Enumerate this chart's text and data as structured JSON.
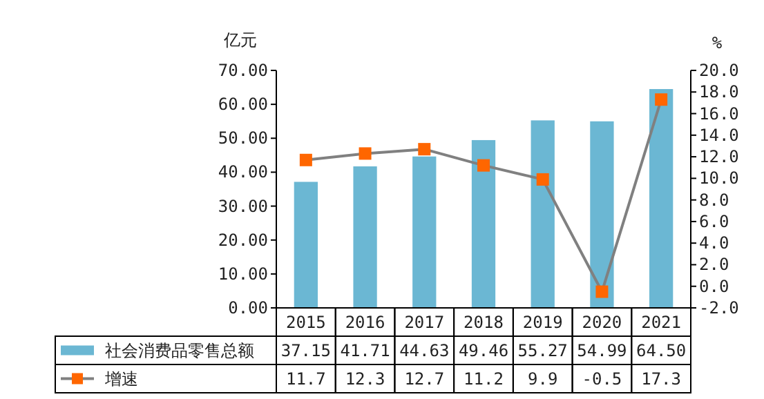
{
  "chart_data": {
    "type": "bar",
    "categories": [
      "2015",
      "2016",
      "2017",
      "2018",
      "2019",
      "2020",
      "2021"
    ],
    "ylabel": "亿元",
    "y2label": "%",
    "ylim": [
      0,
      70
    ],
    "yticks": [
      {
        "value": 0,
        "label": "0.00"
      },
      {
        "value": 10,
        "label": "10.00"
      },
      {
        "value": 20,
        "label": "20.00"
      },
      {
        "value": 30,
        "label": "30.00"
      },
      {
        "value": 40,
        "label": "40.00"
      },
      {
        "value": 50,
        "label": "50.00"
      },
      {
        "value": 60,
        "label": "60.00"
      },
      {
        "value": 70,
        "label": "70.00"
      }
    ],
    "y2lim": [
      -2,
      20
    ],
    "y2ticks": [
      {
        "value": -2,
        "label": "-2.0"
      },
      {
        "value": 0,
        "label": "0.0"
      },
      {
        "value": 2,
        "label": "2.0"
      },
      {
        "value": 4,
        "label": "4.0"
      },
      {
        "value": 6,
        "label": "6.0"
      },
      {
        "value": 8,
        "label": "8.0"
      },
      {
        "value": 10,
        "label": "10.0"
      },
      {
        "value": 12,
        "label": "12.0"
      },
      {
        "value": 14,
        "label": "14.0"
      },
      {
        "value": 16,
        "label": "16.0"
      },
      {
        "value": 18,
        "label": "18.0"
      },
      {
        "value": 20,
        "label": "20.0"
      }
    ],
    "legend": "bottom",
    "grid": false,
    "series": [
      {
        "name": "社会消费品零售总额",
        "color": "#6bb7d3",
        "values": [
          37.15,
          41.71,
          44.63,
          49.46,
          55.27,
          54.99,
          64.5
        ],
        "value_labels": [
          "37.15",
          "41.71",
          "44.63",
          "49.46",
          "55.27",
          "54.99",
          "64.50"
        ]
      },
      {
        "name": "增速",
        "type": "line",
        "axis": "y2",
        "marker": "square",
        "color": "#ff6600",
        "values": [
          11.7,
          12.3,
          12.7,
          11.2,
          9.9,
          -0.5,
          17.3
        ],
        "value_labels": [
          "11.7",
          "12.3",
          "12.7",
          "11.2",
          "9.9",
          "-0.5",
          "17.3"
        ]
      }
    ]
  }
}
